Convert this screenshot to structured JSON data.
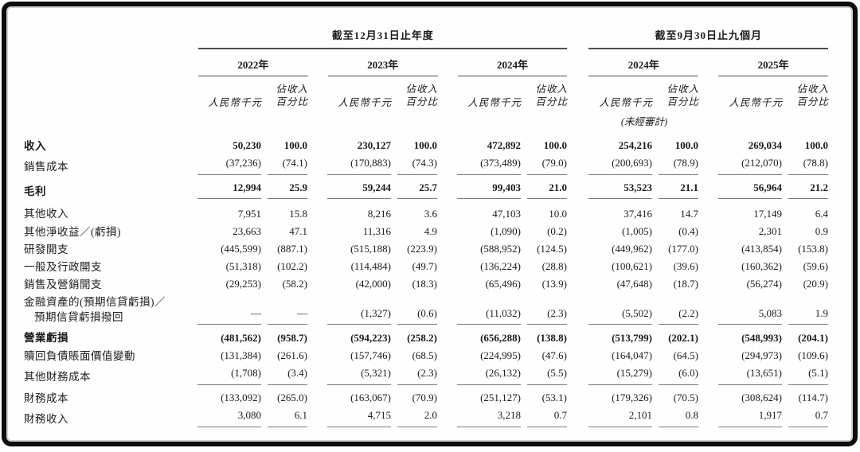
{
  "header": {
    "annual_period": "截至12月31日止年度",
    "interim_period": "截至9月30日止九個月",
    "years": [
      "2022年",
      "2023年",
      "2024年",
      "2024年",
      "2025年"
    ],
    "col_value": "人民幣千元",
    "col_pct_line1": "佔收入",
    "col_pct_line2": "百分比",
    "unaudited": "(未經審計)"
  },
  "table": {
    "rows": [
      {
        "label": "收入",
        "bold": true,
        "rule": false,
        "cells": [
          "50,230",
          "100.0",
          "230,127",
          "100.0",
          "472,892",
          "100.0",
          "254,216",
          "100.0",
          "269,034",
          "100.0"
        ]
      },
      {
        "label": "銷售成本",
        "bold": false,
        "rule": true,
        "cells": [
          "(37,236)",
          "(74.1)",
          "(170,883)",
          "(74.3)",
          "(373,489)",
          "(79.0)",
          "(200,693)",
          "(78.9)",
          "(212,070)",
          "(78.8)"
        ]
      },
      {
        "label": "毛利",
        "bold": true,
        "rule": true,
        "cells": [
          "12,994",
          "25.9",
          "59,244",
          "25.7",
          "99,403",
          "21.0",
          "53,523",
          "21.1",
          "56,964",
          "21.2"
        ]
      },
      {
        "label": "其他收入",
        "bold": false,
        "rule": false,
        "gap": true,
        "cells": [
          "7,951",
          "15.8",
          "8,216",
          "3.6",
          "47,103",
          "10.0",
          "37,416",
          "14.7",
          "17,149",
          "6.4"
        ]
      },
      {
        "label": "其他淨收益／(虧損)",
        "bold": false,
        "rule": false,
        "cells": [
          "23,663",
          "47.1",
          "11,316",
          "4.9",
          "(1,090)",
          "(0.2)",
          "(1,005)",
          "(0.4)",
          "2,301",
          "0.9"
        ]
      },
      {
        "label": "研發開支",
        "bold": false,
        "rule": false,
        "cells": [
          "(445,599)",
          "(887.1)",
          "(515,188)",
          "(223.9)",
          "(588,952)",
          "(124.5)",
          "(449,962)",
          "(177.0)",
          "(413,854)",
          "(153.8)"
        ]
      },
      {
        "label": "一般及行政開支",
        "bold": false,
        "rule": false,
        "cells": [
          "(51,318)",
          "(102.2)",
          "(114,484)",
          "(49.7)",
          "(136,224)",
          "(28.8)",
          "(100,621)",
          "(39.6)",
          "(160,362)",
          "(59.6)"
        ]
      },
      {
        "label": "銷售及營銷開支",
        "bold": false,
        "rule": false,
        "cells": [
          "(29,253)",
          "(58.2)",
          "(42,000)",
          "(18.3)",
          "(65,496)",
          "(13.9)",
          "(47,648)",
          "(18.7)",
          "(56,274)",
          "(20.9)"
        ]
      },
      {
        "label": "金融資產的(預期信貸虧損)／",
        "label2": "預期信貸虧損撥回",
        "bold": false,
        "rule": true,
        "cells": [
          "—",
          "—",
          "(1,327)",
          "(0.6)",
          "(11,032)",
          "(2.3)",
          "(5,502)",
          "(2.2)",
          "5,083",
          "1.9"
        ]
      },
      {
        "label": "營業虧損",
        "bold": true,
        "rule": false,
        "cells": [
          "(481,562)",
          "(958.7)",
          "(594,223)",
          "(258.2)",
          "(656,288)",
          "(138.8)",
          "(513,799)",
          "(202.1)",
          "(548,993)",
          "(204.1)"
        ]
      },
      {
        "label": "贖回負債賬面價值變動",
        "bold": false,
        "rule": false,
        "cells": [
          "(131,384)",
          "(261.6)",
          "(157,746)",
          "(68.5)",
          "(224,995)",
          "(47.6)",
          "(164,047)",
          "(64.5)",
          "(294,973)",
          "(109.6)"
        ]
      },
      {
        "label": "其他財務成本",
        "bold": false,
        "rule": true,
        "cells": [
          "(1,708)",
          "(3.4)",
          "(5,321)",
          "(2.3)",
          "(26,132)",
          "(5.5)",
          "(15,279)",
          "(6.0)",
          "(13,651)",
          "(5.1)"
        ]
      },
      {
        "label": "財務成本",
        "bold": false,
        "rule": false,
        "cells": [
          "(133,092)",
          "(265.0)",
          "(163,067)",
          "(70.9)",
          "(251,127)",
          "(53.1)",
          "(179,326)",
          "(70.5)",
          "(308,624)",
          "(114.7)"
        ]
      },
      {
        "label": "財務收入",
        "bold": false,
        "rule": true,
        "cells": [
          "3,080",
          "6.1",
          "4,715",
          "2.0",
          "3,218",
          "0.7",
          "2,101",
          "0.8",
          "1,917",
          "0.7"
        ]
      }
    ]
  }
}
